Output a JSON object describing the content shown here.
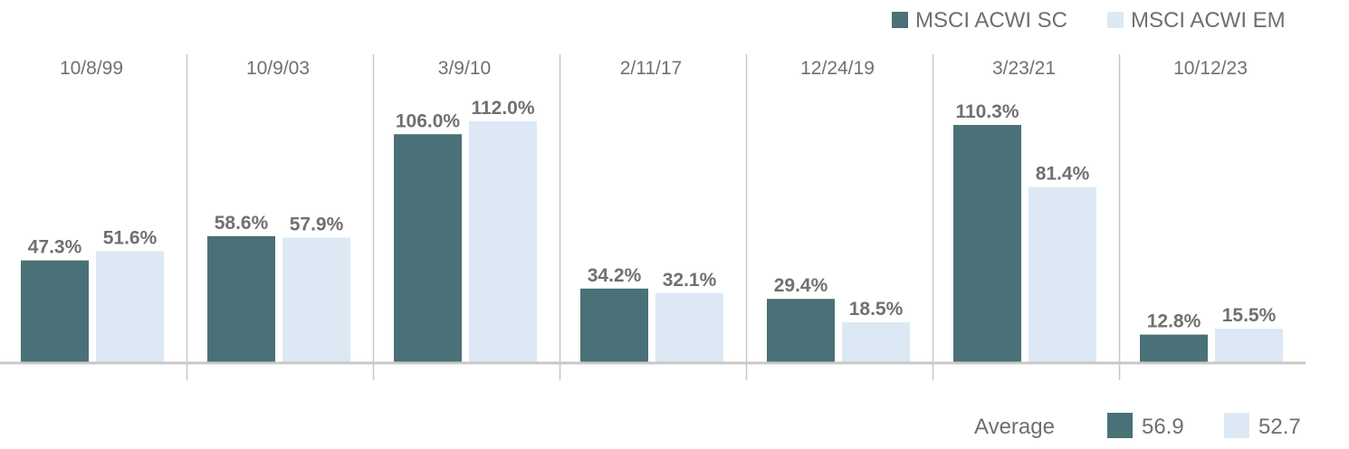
{
  "chart_data": {
    "type": "bar",
    "categories": [
      "10/8/99",
      "10/9/03",
      "3/9/10",
      "2/11/17",
      "12/24/19",
      "3/23/21",
      "10/12/23"
    ],
    "series": [
      {
        "name": "MSCI ACWI SC",
        "color": "#4a7177",
        "values": [
          47.3,
          58.6,
          106.0,
          34.2,
          29.4,
          110.3,
          12.8
        ],
        "labels": [
          "47.3%",
          "58.6%",
          "106.0%",
          "34.2%",
          "29.4%",
          "110.3%",
          "12.8%"
        ]
      },
      {
        "name": "MSCI ACWI EM",
        "color": "#dce9f4",
        "values": [
          51.6,
          57.9,
          112.0,
          32.1,
          18.5,
          81.4,
          15.5
        ],
        "labels": [
          "51.6%",
          "57.9%",
          "112.0%",
          "32.1%",
          "18.5%",
          "81.4%",
          "15.5%"
        ]
      }
    ],
    "ylim": [
      0,
      120
    ],
    "grid": false,
    "legend_position": "top-right",
    "average": {
      "label": "Average",
      "values": [
        {
          "series": "MSCI ACWI SC",
          "value": "56.9",
          "color": "#4a7177"
        },
        {
          "series": "MSCI ACWI EM",
          "value": "52.7",
          "color": "#dce9f4"
        }
      ]
    }
  },
  "colors": {
    "axis": "#c8c8c8",
    "text": "#707070"
  }
}
